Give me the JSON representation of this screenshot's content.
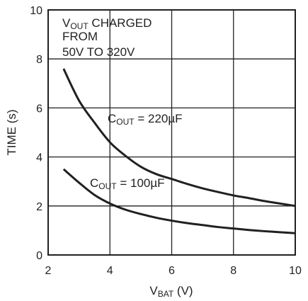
{
  "chart_data": {
    "type": "line",
    "x_axis": {
      "label_main": "V",
      "label_sub": "BAT",
      "label_unit": " (V)",
      "range": [
        2,
        10
      ],
      "ticks": [
        2,
        4,
        6,
        8,
        10
      ],
      "tick_labels": [
        "2",
        "4",
        "6",
        "8",
        "10"
      ]
    },
    "y_axis": {
      "label": "TIME (s)",
      "range": [
        0,
        10
      ],
      "ticks": [
        0,
        2,
        4,
        6,
        8,
        10
      ],
      "tick_labels": [
        "0",
        "2",
        "4",
        "6",
        "8",
        "10"
      ]
    },
    "grid": true,
    "annotation": {
      "line1_main": "V",
      "line1_sub": "OUT",
      "line1_rest": " CHARGED",
      "line2": "FROM",
      "line3": "50V TO 320V"
    },
    "series": [
      {
        "name": "COUT = 220µF",
        "label_main": "C",
        "label_sub": "OUT",
        "label_rest": " = 220µF",
        "color": "#231f20",
        "x": [
          2.5,
          3.0,
          3.5,
          4.0,
          4.5,
          5.0,
          5.5,
          6.0,
          6.5,
          7.0,
          7.5,
          8.0,
          8.5,
          9.0,
          9.5,
          10.0
        ],
        "y": [
          7.6,
          6.3,
          5.4,
          4.6,
          4.05,
          3.6,
          3.3,
          3.1,
          2.9,
          2.72,
          2.57,
          2.43,
          2.32,
          2.2,
          2.1,
          2.0
        ]
      },
      {
        "name": "COUT = 100µF",
        "label_main": "C",
        "label_sub": "OUT",
        "label_rest": " = 100µF",
        "color": "#231f20",
        "x": [
          2.5,
          3.0,
          3.5,
          4.0,
          4.5,
          5.0,
          5.5,
          6.0,
          6.5,
          7.0,
          7.5,
          8.0,
          8.5,
          9.0,
          9.5,
          10.0
        ],
        "y": [
          3.5,
          2.95,
          2.45,
          2.1,
          1.85,
          1.67,
          1.52,
          1.4,
          1.3,
          1.22,
          1.14,
          1.08,
          1.02,
          0.97,
          0.93,
          0.89
        ]
      }
    ]
  }
}
